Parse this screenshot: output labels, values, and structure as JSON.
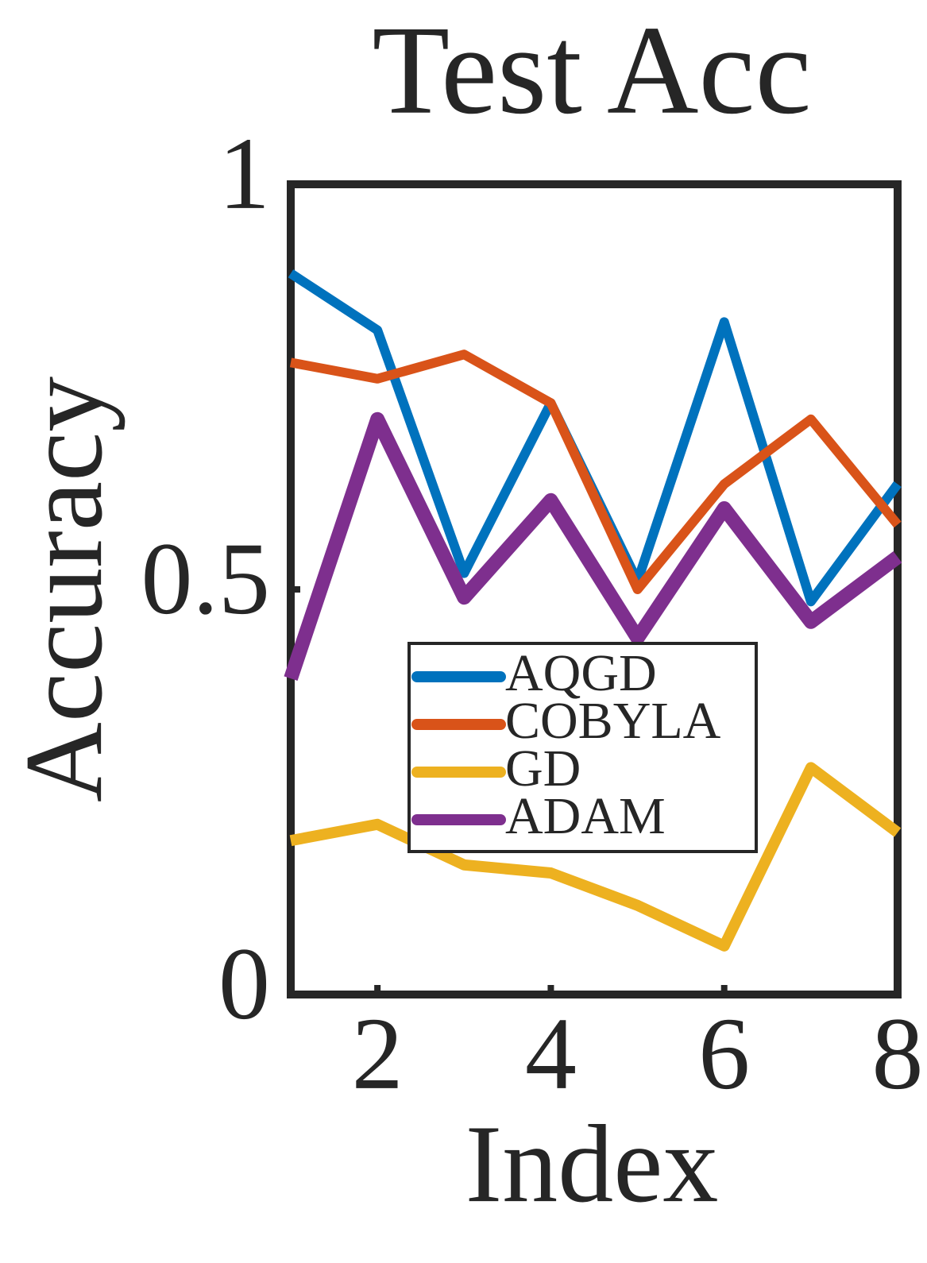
{
  "chart_data": {
    "type": "line",
    "title": "Test Acc",
    "x_label": "Index",
    "y_label": "Accuracy",
    "x": [
      1,
      2,
      3,
      4,
      5,
      6,
      7,
      8
    ],
    "series": [
      {
        "name": "AQGD",
        "color": "#0072bd",
        "values": [
          0.89,
          0.82,
          0.52,
          0.73,
          0.51,
          0.83,
          0.485,
          0.63
        ]
      },
      {
        "name": "COBYLA",
        "color": "#d95319",
        "values": [
          0.78,
          0.76,
          0.79,
          0.73,
          0.5,
          0.63,
          0.71,
          0.58
        ]
      },
      {
        "name": "GD",
        "color": "#edb120",
        "values": [
          0.19,
          0.21,
          0.16,
          0.15,
          0.11,
          0.06,
          0.28,
          0.2
        ]
      },
      {
        "name": "ADAM",
        "color": "#7e2f8e",
        "values": [
          0.39,
          0.71,
          0.49,
          0.61,
          0.44,
          0.6,
          0.46,
          0.54
        ]
      }
    ],
    "xlim": [
      1,
      8
    ],
    "xticks": [
      2,
      4,
      6,
      8
    ],
    "ylim": [
      0,
      1
    ],
    "yticks": [
      0,
      0.5,
      1
    ],
    "legend": "center"
  }
}
